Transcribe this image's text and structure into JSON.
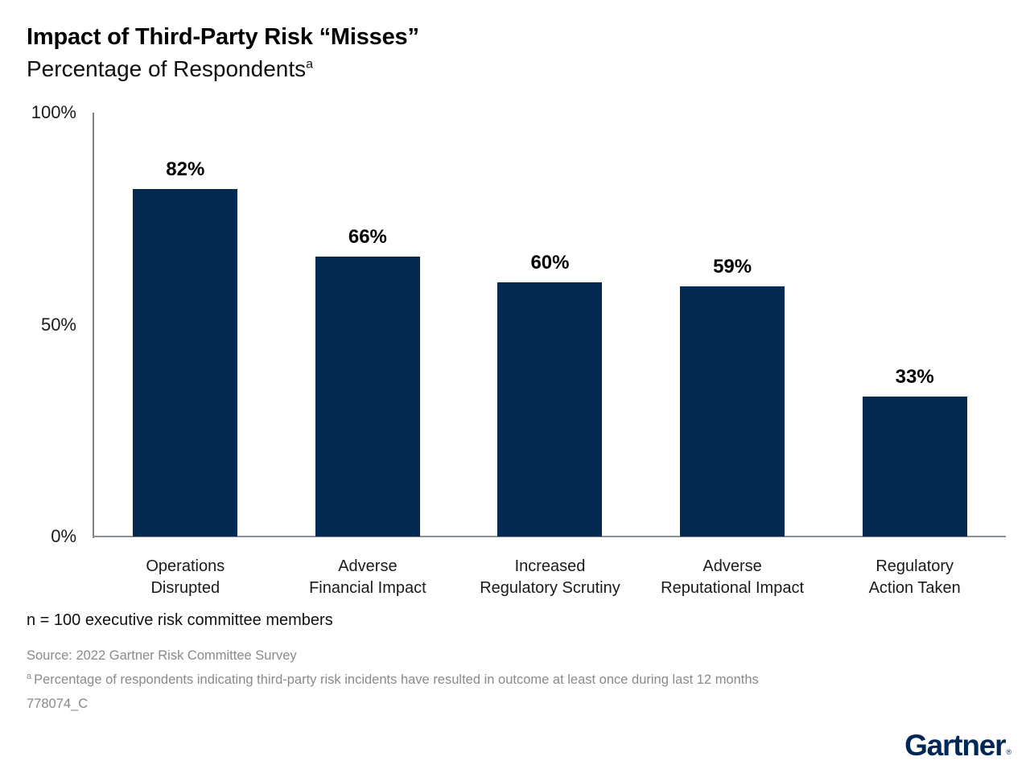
{
  "header": {
    "title": "Impact of Third-Party Risk “Misses”",
    "subtitle": "Percentage of Respondents",
    "subtitle_superscript": "a"
  },
  "chart_data": {
    "type": "bar",
    "title": "Impact of Third-Party Risk “Misses”",
    "subtitle": "Percentage of Respondents",
    "categories": [
      [
        "Operations",
        "Disrupted"
      ],
      [
        "Adverse",
        "Financial Impact"
      ],
      [
        "Increased",
        "Regulatory Scrutiny"
      ],
      [
        "Adverse",
        "Reputational Impact"
      ],
      [
        "Regulatory",
        "Action Taken"
      ]
    ],
    "values": [
      82,
      66,
      60,
      59,
      33
    ],
    "value_labels": [
      "82%",
      "66%",
      "60%",
      "59%",
      "33%"
    ],
    "ylabel": "",
    "xlabel": "",
    "ylim": [
      0,
      100
    ],
    "yticks": [
      {
        "value": 0,
        "label": "0%"
      },
      {
        "value": 50,
        "label": "50%"
      },
      {
        "value": 100,
        "label": "100%"
      }
    ],
    "grid": false,
    "legend_position": "none",
    "bar_color": "#042A52",
    "axis_color": "#808080"
  },
  "footer": {
    "sample_note": "n = 100 executive risk committee members",
    "source": "Source: 2022 Gartner Risk Committee Survey",
    "footnote_superscript": "a",
    "footnote": "Percentage of respondents indicating third-party risk incidents have resulted in outcome at least once during last 12 months",
    "document_code": "778074_C"
  },
  "branding": {
    "logo_text": "Gartner",
    "registered_mark": "®",
    "logo_color": "#002856"
  }
}
